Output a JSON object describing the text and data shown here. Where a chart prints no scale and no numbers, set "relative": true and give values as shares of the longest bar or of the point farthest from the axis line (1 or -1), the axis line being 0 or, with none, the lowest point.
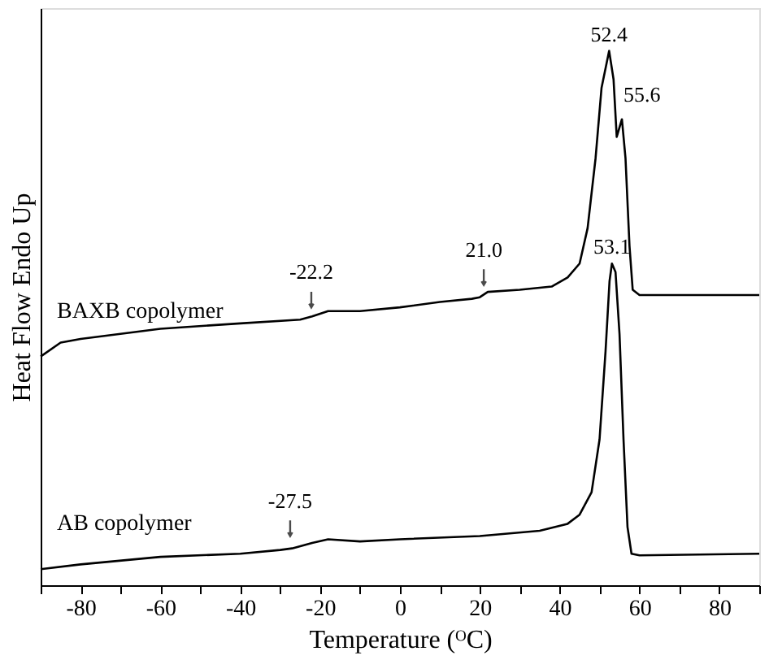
{
  "chart_data": {
    "type": "line",
    "relative": true,
    "xlabel": "Temperature (ᴼC)",
    "ylabel": "Heat Flow Endo Up",
    "xlim": [
      -90,
      90
    ],
    "xticks": [
      {
        "value": -90,
        "label": null
      },
      -80,
      {
        "value": -70,
        "label": null
      },
      -60,
      {
        "value": -50,
        "label": null
      },
      -40,
      {
        "value": -30,
        "label": null
      },
      -20,
      {
        "value": -10,
        "label": null
      },
      0,
      {
        "value": 10,
        "label": null
      },
      20,
      {
        "value": 30,
        "label": null
      },
      40,
      {
        "value": 50,
        "label": null
      },
      60,
      {
        "value": 70,
        "label": null
      },
      80,
      {
        "value": 90,
        "label": null
      }
    ],
    "grid": false,
    "legend": false,
    "line_style": "solid",
    "marker": "none",
    "series": [
      {
        "name": "BAXB copolymer",
        "color": "#000000",
        "x": [
          -90,
          -85,
          -80,
          -60,
          -40,
          -25,
          -22,
          -18,
          -10,
          0,
          10,
          18,
          20,
          22,
          30,
          38,
          42,
          45,
          47,
          49,
          50.5,
          52.4,
          53.5,
          54.3,
          55.6,
          56.5,
          57.5,
          58.3,
          60,
          70,
          90
        ],
        "values": [
          0.428,
          0.454,
          0.461,
          0.48,
          0.49,
          0.497,
          0.503,
          0.513,
          0.513,
          0.52,
          0.53,
          0.536,
          0.539,
          0.549,
          0.553,
          0.559,
          0.576,
          0.602,
          0.668,
          0.799,
          0.931,
          1,
          0.947,
          0.839,
          0.872,
          0.799,
          0.635,
          0.553,
          0.543,
          0.543,
          0.543
        ]
      },
      {
        "name": "AB copolymer",
        "color": "#000000",
        "x": [
          -90,
          -80,
          -60,
          -40,
          -30,
          -27,
          -22,
          -18,
          -10,
          0,
          20,
          35,
          42,
          45,
          48,
          50,
          51.5,
          52.5,
          53.1,
          54,
          55,
          56,
          57,
          58,
          60,
          90
        ],
        "values": [
          0.03,
          0.039,
          0.053,
          0.059,
          0.066,
          0.069,
          0.079,
          0.086,
          0.082,
          0.086,
          0.092,
          0.102,
          0.115,
          0.132,
          0.174,
          0.273,
          0.438,
          0.569,
          0.602,
          0.586,
          0.47,
          0.273,
          0.109,
          0.059,
          0.056,
          0.059
        ]
      }
    ],
    "annotations": [
      {
        "text": "52.4",
        "x": 52.4,
        "y": 1
      },
      {
        "text": "55.6",
        "x": 55.6,
        "y": 0.872
      },
      {
        "text": "53.1",
        "x": 53.1,
        "y": 0.602
      },
      {
        "text": "-22.2",
        "x": -22.2,
        "y": 0.503
      },
      {
        "text": "21.0",
        "x": 21.0,
        "y": 0.545
      },
      {
        "text": "-27.5",
        "x": -27.5,
        "y": 0.075
      }
    ]
  }
}
